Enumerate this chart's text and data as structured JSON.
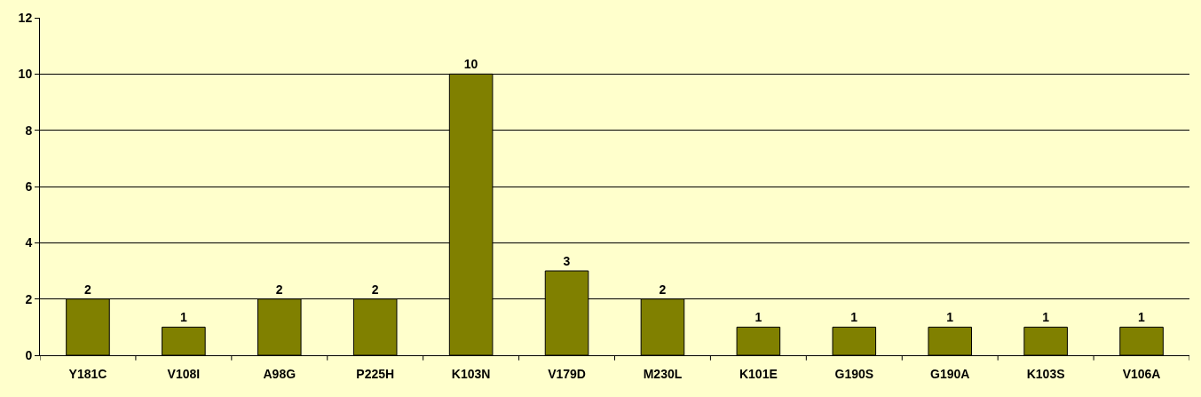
{
  "chart_data": {
    "type": "bar",
    "categories": [
      "Y181C",
      "V108I",
      "A98G",
      "P225H",
      "K103N",
      "V179D",
      "M230L",
      "K101E",
      "G190S",
      "G190A",
      "K103S",
      "V106A"
    ],
    "values": [
      2,
      1,
      2,
      2,
      10,
      3,
      2,
      1,
      1,
      1,
      1,
      1
    ],
    "color": "#808000",
    "ylim": [
      0,
      12
    ],
    "yticks": [
      0,
      2,
      4,
      6,
      8,
      10,
      12
    ],
    "grid": "y",
    "data_labels": true
  }
}
